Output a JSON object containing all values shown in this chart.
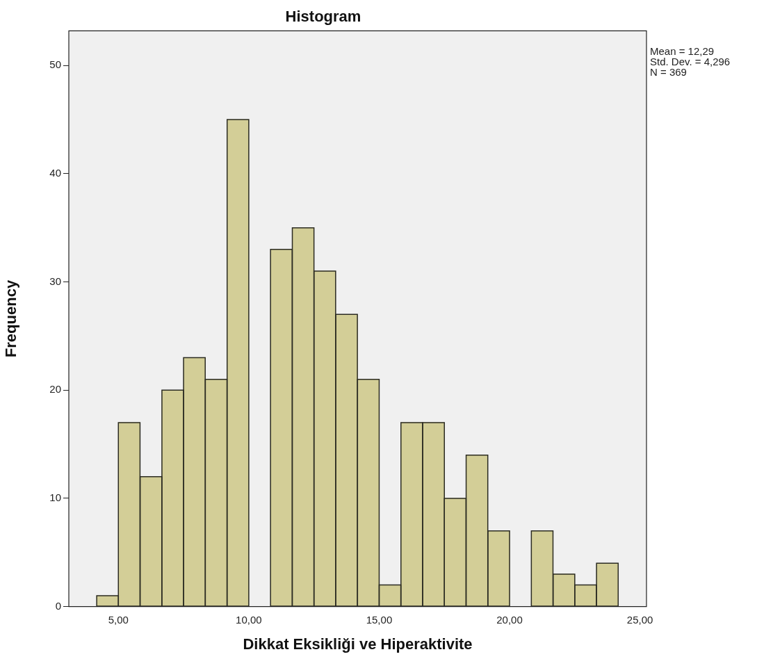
{
  "chart_data": {
    "type": "histogram",
    "title": "Histogram",
    "xlabel": "Dikkat Eksikliği ve Hiperaktivite",
    "ylabel": "Frequency",
    "bins": [
      4.17,
      5.0,
      5.83,
      6.67,
      7.5,
      8.33,
      9.17,
      10.0,
      10.83,
      11.67,
      12.5,
      13.33,
      14.17,
      15.0,
      15.83,
      16.67,
      17.5,
      18.33,
      19.17,
      20.0,
      20.83,
      21.67,
      22.5,
      23.33,
      24.17
    ],
    "values": [
      1,
      17,
      12,
      20,
      23,
      21,
      45,
      0,
      33,
      35,
      31,
      27,
      21,
      2,
      17,
      17,
      10,
      14,
      7,
      0,
      7,
      3,
      2,
      4
    ],
    "color": "#d3ce97",
    "xlim": [
      3.1,
      25.25
    ],
    "xticks": [
      {
        "value": 5,
        "label": "5,00"
      },
      {
        "value": 10,
        "label": "10,00"
      },
      {
        "value": 15,
        "label": "15,00"
      },
      {
        "value": 20,
        "label": "20,00"
      },
      {
        "value": 25,
        "label": "25,00"
      }
    ],
    "ylim": [
      0,
      53.2
    ],
    "yticks": [
      0,
      10,
      20,
      30,
      40,
      50
    ],
    "grid": false,
    "legend": false,
    "annotations": [
      "Mean = 12,29",
      "Std. Dev. = 4,296",
      "N = 369"
    ]
  }
}
